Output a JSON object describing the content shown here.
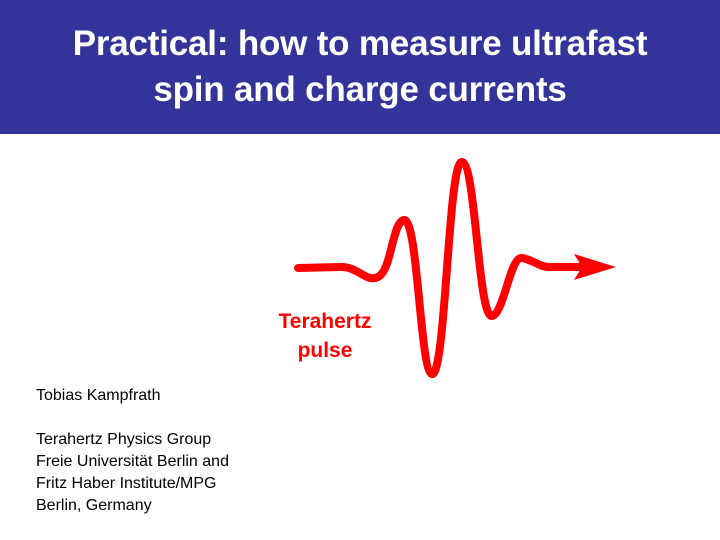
{
  "slide": {
    "title_line1": "Practical: how to measure ultrafast",
    "title_line2": "spin and charge currents",
    "title_bar_color": "#333399",
    "pulse_color": "#ff0000",
    "pulse_label_line1": "Terahertz",
    "pulse_label_line2": "pulse",
    "author": "Tobias Kampfrath",
    "affiliation": [
      "Terahertz Physics Group",
      "Freie Universität Berlin and",
      "Fritz Haber Institute/MPG",
      "Berlin, Germany"
    ]
  }
}
